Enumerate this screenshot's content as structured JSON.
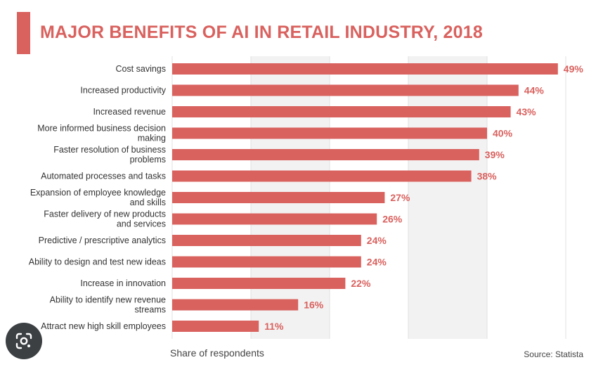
{
  "title": "MAJOR BENEFITS OF AI IN RETAIL INDUSTRY, 2018",
  "footer": {
    "axis_note": "Share of respondents",
    "source": "Source: Statista"
  },
  "colors": {
    "accent": "#d9615e",
    "bar": "#d9615e",
    "value_text": "#d9615e",
    "band": "#f2f2f2"
  },
  "icons": {
    "lens": "google-lens-icon"
  },
  "chart_data": {
    "type": "bar",
    "orientation": "horizontal",
    "title": "MAJOR BENEFITS OF AI IN RETAIL INDUSTRY, 2018",
    "xlabel": "Share of respondents",
    "ylabel": "",
    "xlim": [
      0,
      50
    ],
    "value_suffix": "%",
    "categories": [
      "Cost savings",
      "Increased productivity",
      "Increased revenue",
      "More informed business decision making",
      "Faster resolution of business problems",
      "Automated processes and tasks",
      "Expansion of employee knowledge and skills",
      "Faster delivery of new products and services",
      "Predictive / prescriptive analytics",
      "Ability to design and test new ideas",
      "Increase in innovation",
      "Ability to identify new revenue streams",
      "Attract new high skill employees"
    ],
    "category_lines": [
      [
        "Cost savings"
      ],
      [
        "Increased productivity"
      ],
      [
        "Increased revenue"
      ],
      [
        "More informed business decision",
        "making"
      ],
      [
        "Faster resolution of business",
        "problems"
      ],
      [
        "Automated processes and tasks"
      ],
      [
        "Expansion of employee knowledge",
        "and skills"
      ],
      [
        "Faster delivery of new products",
        "and services"
      ],
      [
        "Predictive / prescriptive analytics"
      ],
      [
        "Ability to design and test new ideas"
      ],
      [
        "Increase in innovation"
      ],
      [
        "Ability to identify new revenue",
        "streams"
      ],
      [
        "Attract new high skill employees"
      ]
    ],
    "values": [
      49,
      44,
      43,
      40,
      39,
      38,
      27,
      26,
      24,
      24,
      22,
      16,
      11
    ],
    "value_labels": [
      "49%",
      "44%",
      "43%",
      "40%",
      "39%",
      "38%",
      "27%",
      "26%",
      "24%",
      "24%",
      "22%",
      "16%",
      "11%"
    ]
  }
}
